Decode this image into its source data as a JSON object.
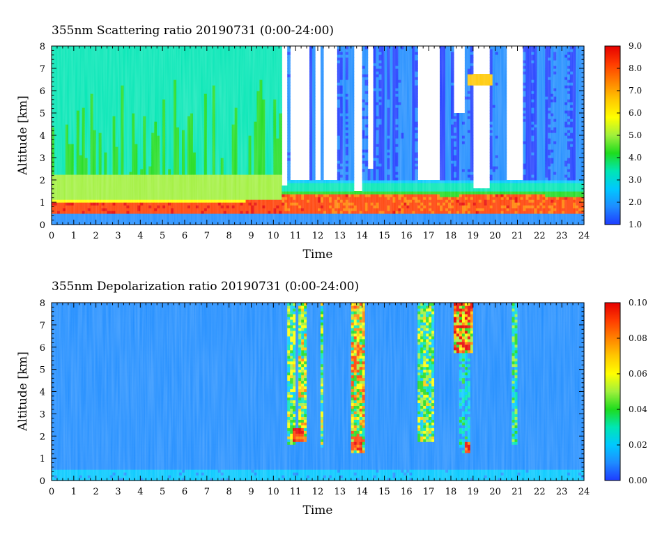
{
  "chart_data": [
    {
      "type": "heatmap",
      "title": "355nm Scattering ratio  20190731 (0:00-24:00)",
      "xlabel": "Time",
      "ylabel": "Altitude [km]",
      "xlim": [
        0,
        24
      ],
      "ylim": [
        0,
        8
      ],
      "x_ticks": [
        "0",
        "1",
        "2",
        "3",
        "4",
        "5",
        "6",
        "7",
        "8",
        "9",
        "10",
        "11",
        "12",
        "13",
        "14",
        "15",
        "16",
        "17",
        "18",
        "19",
        "20",
        "21",
        "22",
        "23",
        "24"
      ],
      "y_ticks": [
        "0",
        "1",
        "2",
        "3",
        "4",
        "5",
        "6",
        "7",
        "8"
      ],
      "colorbar": {
        "range": [
          1.0,
          9.0
        ],
        "ticks": [
          "1.0",
          "2.0",
          "3.0",
          "4.0",
          "5.0",
          "6.0",
          "7.0",
          "8.0",
          "9.0"
        ],
        "colors": [
          "#1e3cff",
          "#1e8cff",
          "#00c8ff",
          "#00e6b4",
          "#1edc1e",
          "#a0f03c",
          "#ffff00",
          "#ffc800",
          "#ff8200",
          "#ff3c00",
          "#e60000"
        ]
      },
      "clear_sky_range": [
        0,
        10.4
      ],
      "clear_sky_scattering_ratio": {
        "above_2km": 3.5,
        "near_1.5km": 4.8,
        "peak_0.8km": 8.0
      },
      "cloud_free_scattering_ratio_after_10h": 1.8,
      "boundary_layer_top_km": [
        {
          "t": 0,
          "z": 1.0
        },
        {
          "t": 4,
          "z": 1.0
        },
        {
          "t": 8,
          "z": 1.0
        },
        {
          "t": 10.5,
          "z": 1.2
        },
        {
          "t": 14,
          "z": 1.2
        },
        {
          "t": 18,
          "z": 1.1
        },
        {
          "t": 21,
          "z": 1.2
        },
        {
          "t": 24,
          "z": 1.0
        }
      ],
      "missing_data_segments": [
        {
          "t": [
            10.4,
            10.6
          ],
          "z": [
            1.8,
            8
          ]
        },
        {
          "t": [
            10.8,
            11.6
          ],
          "z": [
            2.0,
            8
          ]
        },
        {
          "t": [
            11.9,
            12.1
          ],
          "z": [
            2.0,
            8
          ]
        },
        {
          "t": [
            12.3,
            12.9
          ],
          "z": [
            2.0,
            8
          ]
        },
        {
          "t": [
            13.6,
            14.0
          ],
          "z": [
            1.5,
            8
          ]
        },
        {
          "t": [
            14.2,
            14.5
          ],
          "z": [
            2.5,
            8
          ]
        },
        {
          "t": [
            16.5,
            17.5
          ],
          "z": [
            2.0,
            8
          ]
        },
        {
          "t": [
            18.1,
            18.6
          ],
          "z": [
            5.0,
            8
          ]
        },
        {
          "t": [
            19.0,
            19.8
          ],
          "z": [
            1.6,
            8
          ]
        },
        {
          "t": [
            20.5,
            21.2
          ],
          "z": [
            2.0,
            8
          ]
        }
      ],
      "high_value_features": [
        {
          "t": [
            18.8,
            19.9
          ],
          "z": [
            6.3,
            6.8
          ],
          "value": 6.5
        }
      ]
    },
    {
      "type": "heatmap",
      "title": "355nm Depolarization ratio  20190731 (0:00-24:00)",
      "xlabel": "Time",
      "ylabel": "Altitude [km]",
      "xlim": [
        0,
        24
      ],
      "ylim": [
        0,
        8
      ],
      "x_ticks": [
        "0",
        "1",
        "2",
        "3",
        "4",
        "5",
        "6",
        "7",
        "8",
        "9",
        "10",
        "11",
        "12",
        "13",
        "14",
        "15",
        "16",
        "17",
        "18",
        "19",
        "20",
        "21",
        "22",
        "23",
        "24"
      ],
      "y_ticks": [
        "0",
        "1",
        "2",
        "3",
        "4",
        "5",
        "6",
        "7",
        "8"
      ],
      "colorbar": {
        "range": [
          0.0,
          0.1
        ],
        "ticks": [
          "0.00",
          "0.02",
          "0.04",
          "0.06",
          "0.08",
          "0.10"
        ],
        "colors": [
          "#1e3cff",
          "#1e8cff",
          "#00c8ff",
          "#00e6b4",
          "#1edc1e",
          "#a0f03c",
          "#ffff00",
          "#ffc800",
          "#ff8200",
          "#ff3c00",
          "#e60000"
        ]
      },
      "background_depolarization": 0.013,
      "cloud_columns": [
        {
          "t": [
            10.6,
            11.0
          ],
          "z": [
            1.6,
            8.0
          ],
          "value": 0.05
        },
        {
          "t": [
            11.1,
            11.5
          ],
          "z": [
            1.7,
            8.0
          ],
          "value": 0.06
        },
        {
          "t": [
            12.1,
            12.3
          ],
          "z": [
            1.5,
            8.0
          ],
          "value": 0.05
        },
        {
          "t": [
            13.5,
            14.1
          ],
          "z": [
            1.3,
            8.0
          ],
          "value": 0.07
        },
        {
          "t": [
            16.5,
            17.2
          ],
          "z": [
            1.7,
            8.0
          ],
          "value": 0.05
        },
        {
          "t": [
            18.1,
            19.0
          ],
          "z": [
            5.8,
            8.0
          ],
          "value": 0.09
        },
        {
          "t": [
            18.4,
            18.9
          ],
          "z": [
            1.3,
            5.8
          ],
          "value": 0.03
        },
        {
          "t": [
            20.8,
            21.0
          ],
          "z": [
            1.6,
            8.0
          ],
          "value": 0.04
        }
      ],
      "high_value_features": [
        {
          "t": [
            10.9,
            11.4
          ],
          "z": [
            1.8,
            2.4
          ],
          "value": 0.09
        },
        {
          "t": [
            13.6,
            14.0
          ],
          "z": [
            1.4,
            2.0
          ],
          "value": 0.09
        },
        {
          "t": [
            18.6,
            18.9
          ],
          "z": [
            1.3,
            1.8
          ],
          "value": 0.09
        }
      ]
    }
  ]
}
